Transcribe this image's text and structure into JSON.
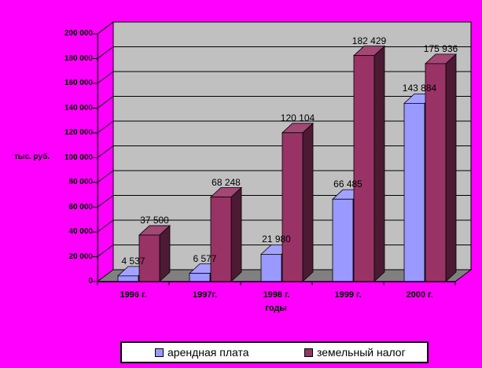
{
  "chart_data": {
    "type": "bar",
    "style": "3d-clustered-column",
    "title": "",
    "categories": [
      "1996 г.",
      "1997г.",
      "1998 г.",
      "1999 г.",
      "2000 г."
    ],
    "series": [
      {
        "name": "арендная плата",
        "color": "#9999FF",
        "values": [
          4537,
          6577,
          21980,
          66485,
          143884
        ],
        "labels": [
          "4 537",
          "6 577",
          "21 980",
          "66 485",
          "143 884"
        ]
      },
      {
        "name": "земельный налог",
        "color": "#993366",
        "values": [
          37500,
          68248,
          120104,
          182429,
          175936
        ],
        "labels": [
          "37 500",
          "68 248",
          "120 104",
          "182 429",
          "175 936"
        ]
      }
    ],
    "xlabel": "годы",
    "ylabel": "тыс. руб.",
    "ylim": [
      0,
      200000
    ],
    "ytick_step": 20000,
    "yticks": [
      "0",
      "20 000",
      "40 000",
      "60 000",
      "80 000",
      "100 000",
      "120 000",
      "140 000",
      "160 000",
      "180 000",
      "200 000"
    ],
    "grid": true,
    "legend_position": "bottom-center",
    "colors": {
      "background": "#FF00FF",
      "wall": "#C0C0C0",
      "floor": "#808080",
      "axis": "#000000",
      "legend_bg": "#FFFFFF",
      "text": "#000000"
    }
  }
}
